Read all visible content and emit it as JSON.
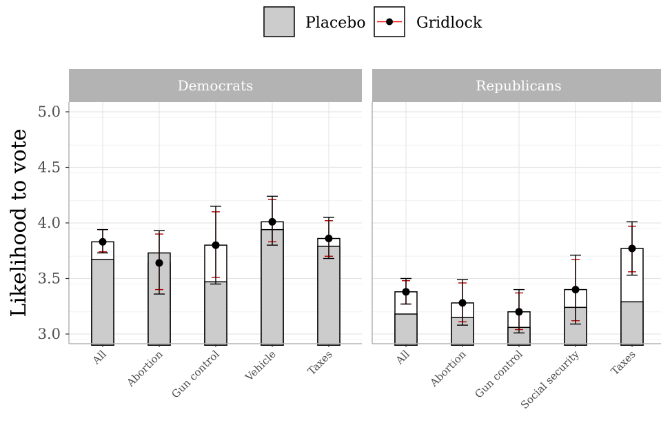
{
  "chart_data": {
    "type": "bar",
    "ylabel": "Likelihood to vote",
    "ylim": [
      2.9,
      5.1
    ],
    "yticks": [
      "3.0",
      "3.5",
      "4.0",
      "4.5",
      "5.0"
    ],
    "grid": true,
    "legend": {
      "placement": "top",
      "entries": [
        {
          "name": "Placebo",
          "color": "#cccccc"
        },
        {
          "name": "Gridlock",
          "color": "#000000",
          "errorbar_color": "#ff0000"
        }
      ]
    },
    "panels": [
      {
        "title": "Democrats",
        "categories": [
          "All",
          "Abortion",
          "Gun control",
          "Vehicle",
          "Taxes"
        ],
        "series": [
          {
            "name": "Placebo",
            "values": [
              3.67,
              3.73,
              3.47,
              3.94,
              3.79
            ],
            "errors_low": [
              3.74,
              3.4,
              3.51,
              3.83,
              3.7
            ],
            "errors_high": [
              3.94,
              3.9,
              4.1,
              4.21,
              4.02
            ]
          },
          {
            "name": "Gridlock",
            "values": [
              3.83,
              3.64,
              3.8,
              4.01,
              3.86
            ],
            "errors_low": [
              3.73,
              3.36,
              3.45,
              3.8,
              3.68
            ],
            "errors_high": [
              3.94,
              3.93,
              4.15,
              4.24,
              4.05
            ]
          }
        ]
      },
      {
        "title": "Republicans",
        "categories": [
          "All",
          "Abortion",
          "Gun control",
          "Social security",
          "Taxes"
        ],
        "series": [
          {
            "name": "Placebo",
            "values": [
              3.18,
              3.15,
              3.06,
              3.24,
              3.29
            ],
            "errors_low": [
              3.27,
              3.11,
              3.04,
              3.12,
              3.56
            ],
            "errors_high": [
              3.48,
              3.46,
              3.37,
              3.67,
              3.97
            ]
          },
          {
            "name": "Gridlock",
            "values": [
              3.38,
              3.28,
              3.2,
              3.4,
              3.77
            ],
            "errors_low": [
              3.27,
              3.08,
              3.01,
              3.09,
              3.53
            ],
            "errors_high": [
              3.5,
              3.49,
              3.4,
              3.71,
              4.01
            ]
          }
        ]
      }
    ]
  }
}
